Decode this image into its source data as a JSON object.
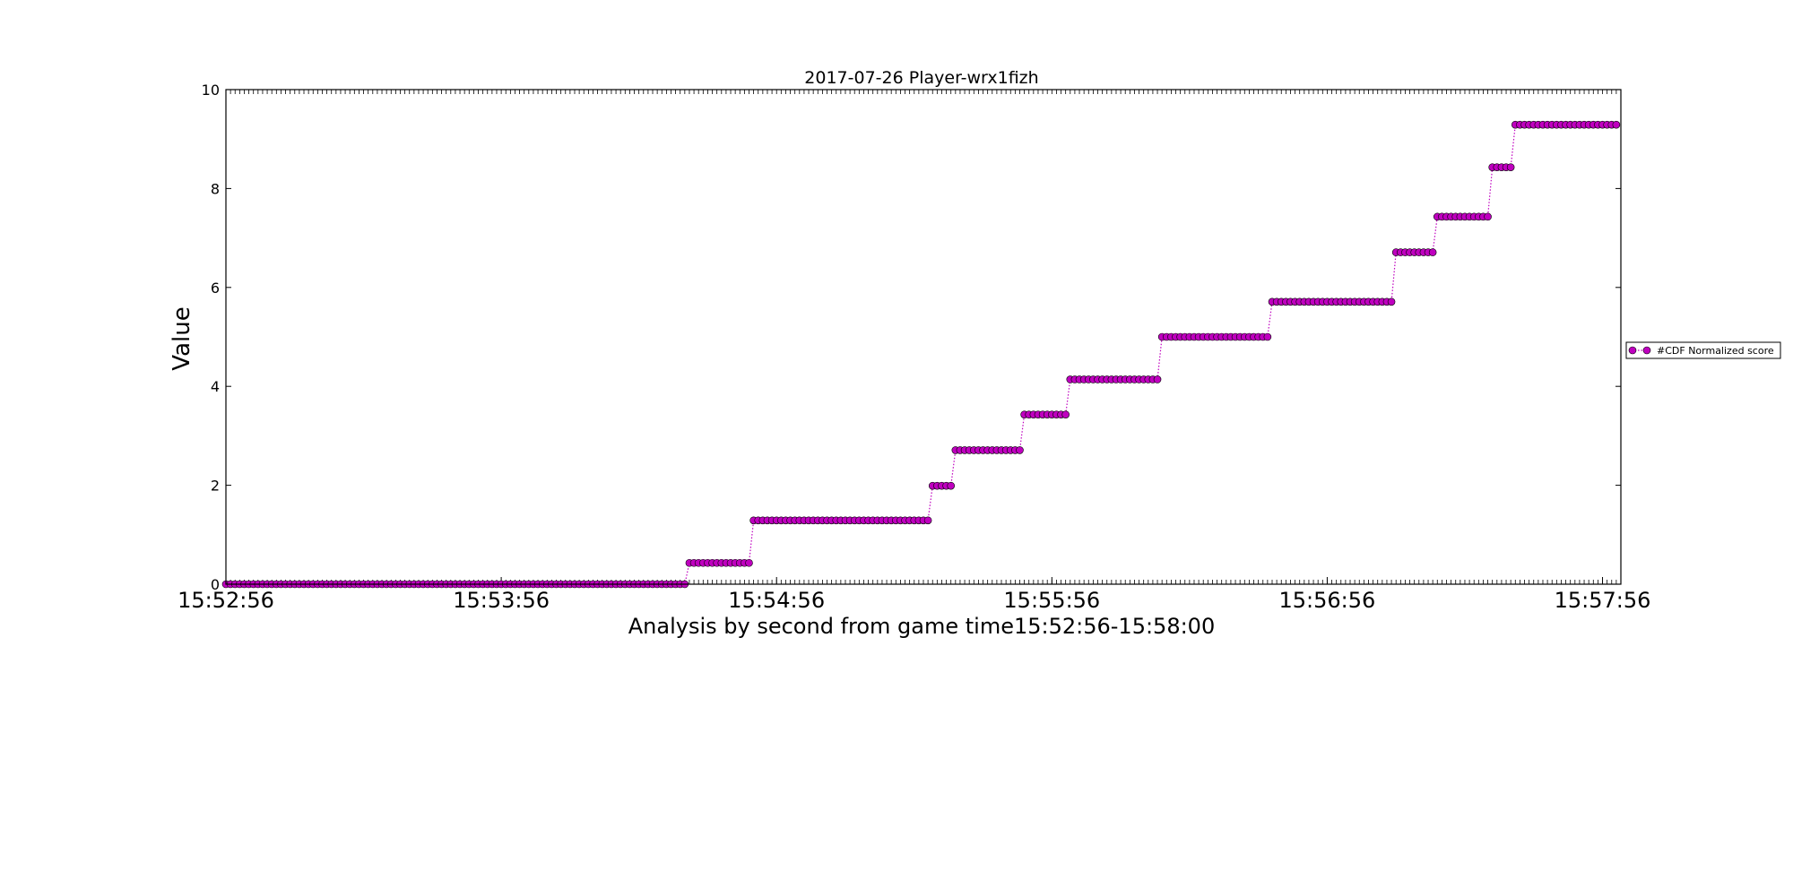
{
  "chart_data": {
    "type": "line",
    "title": "2017-07-26 Player-wrx1fizh",
    "xlabel": "Analysis by second from game time15:52:56-15:58:00",
    "ylabel": "Value",
    "xlim": [
      "15:52:56",
      "15:58:00"
    ],
    "ylim": [
      0,
      10
    ],
    "xtick_labels": [
      "15:52:56",
      "15:53:56",
      "15:54:56",
      "15:55:56",
      "15:56:56",
      "15:57:56"
    ],
    "ytick_labels": [
      "0",
      "2",
      "4",
      "6",
      "8",
      "10"
    ],
    "grid": false,
    "legend_position": "right",
    "series": [
      {
        "name": "#CDF Normalized score",
        "color": "#bf00bf",
        "marker": "circle",
        "linestyle": "dotted",
        "steps": [
          {
            "start": "15:52:56",
            "end": "15:54:36",
            "value": 0
          },
          {
            "start": "15:54:37",
            "end": "15:54:50",
            "value": 0.43
          },
          {
            "start": "15:54:51",
            "end": "15:55:29",
            "value": 1.29
          },
          {
            "start": "15:55:30",
            "end": "15:55:34",
            "value": 1.99
          },
          {
            "start": "15:55:35",
            "end": "15:55:49",
            "value": 2.71
          },
          {
            "start": "15:55:50",
            "end": "15:55:59",
            "value": 3.43
          },
          {
            "start": "15:56:00",
            "end": "15:56:19",
            "value": 4.14
          },
          {
            "start": "15:56:20",
            "end": "15:56:43",
            "value": 5.0
          },
          {
            "start": "15:56:44",
            "end": "15:57:10",
            "value": 5.71
          },
          {
            "start": "15:57:11",
            "end": "15:57:19",
            "value": 6.71
          },
          {
            "start": "15:57:20",
            "end": "15:57:31",
            "value": 7.43
          },
          {
            "start": "15:57:32",
            "end": "15:57:36",
            "value": 8.43
          },
          {
            "start": "15:57:37",
            "end": "15:57:59",
            "value": 9.29
          }
        ]
      }
    ]
  }
}
